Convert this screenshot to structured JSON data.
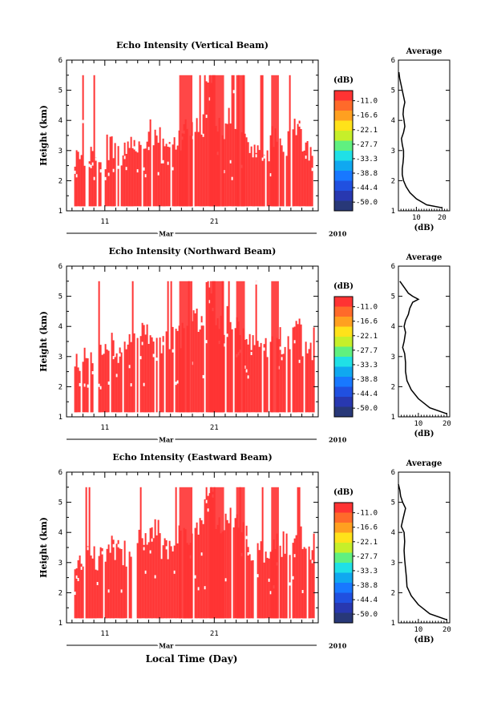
{
  "figure": {
    "xlabel": "Local Time (Day)",
    "month_label": "Mar",
    "year_label": "2010",
    "colorbar_unit": "(dB)",
    "colorbar_levels": [
      "-11.0",
      "-16.6",
      "-22.1",
      "-27.7",
      "-33.3",
      "-38.8",
      "-44.4",
      "-50.0"
    ],
    "colorbar_colors": [
      "#ff3333",
      "#ff6a2a",
      "#ffa020",
      "#ffe21a",
      "#c6ef2a",
      "#60f080",
      "#20e0e6",
      "#10a8f0",
      "#1878ff",
      "#2050e0",
      "#2838b0",
      "#283878"
    ],
    "fill_color": "#ff3333"
  },
  "chart_data": [
    {
      "type": "heatmap",
      "title": "Echo Intensity (Vertical Beam)",
      "ylabel": "Height (km)",
      "ylim": [
        1,
        6
      ],
      "yticks": [
        1,
        2,
        3,
        4,
        5,
        6
      ],
      "xlim": [
        7.5,
        30.5
      ],
      "xticks": [
        11,
        21
      ],
      "noise_seed": 11,
      "echo_top_km": [
        2.7,
        2.9,
        2.6,
        3.1,
        2.9,
        3.3,
        3.5,
        3.6,
        3.0,
        3.4,
        3.6,
        3.9,
        5.5,
        3.8,
        4.0,
        3.6,
        3.1,
        3.0,
        3.4,
        3.2,
        3.7,
        3.0,
        2.6,
        2.9
      ],
      "average": {
        "title": "Average",
        "xlabel": "(dB)",
        "xticks": [
          10,
          20
        ],
        "xlim": [
          3,
          23
        ],
        "ylim": [
          1,
          6
        ],
        "height_km": [
          1.1,
          1.2,
          1.4,
          1.6,
          1.8,
          2.0,
          2.2,
          2.4,
          2.6,
          2.8,
          3.0,
          3.2,
          3.4,
          3.6,
          3.8,
          4.0,
          4.2,
          4.4,
          4.6,
          4.8,
          5.0,
          5.2,
          5.4,
          5.6
        ],
        "db": [
          20,
          14,
          10,
          7.5,
          6.0,
          5.0,
          4.5,
          4.5,
          4.8,
          5.0,
          5.0,
          4.5,
          4.2,
          5.0,
          5.5,
          5.2,
          4.8,
          5.0,
          5.5,
          5.0,
          4.5,
          4.0,
          3.5,
          3.2
        ]
      }
    },
    {
      "type": "heatmap",
      "title": "Echo Intensity (Northward Beam)",
      "ylabel": "Height (km)",
      "ylim": [
        1,
        6
      ],
      "yticks": [
        1,
        2,
        3,
        4,
        5,
        6
      ],
      "xlim": [
        7.5,
        30.5
      ],
      "xticks": [
        11,
        21
      ],
      "noise_seed": 23,
      "echo_top_km": [
        2.9,
        3.1,
        3.0,
        3.4,
        3.2,
        3.5,
        3.8,
        3.9,
        3.4,
        3.7,
        3.9,
        4.2,
        5.5,
        4.1,
        4.3,
        3.9,
        3.4,
        3.3,
        3.7,
        3.5,
        4.0,
        3.3,
        3.8,
        3.9
      ],
      "average": {
        "title": "Average",
        "xlabel": "(dB)",
        "xticks": [
          10,
          20
        ],
        "xlim": [
          3,
          21
        ],
        "ylim": [
          1,
          6
        ],
        "height_km": [
          1.1,
          1.3,
          1.6,
          1.9,
          2.2,
          2.5,
          2.8,
          3.1,
          3.3,
          3.5,
          3.8,
          4.0,
          4.2,
          4.4,
          4.6,
          4.8,
          4.9,
          5.0,
          5.1,
          5.3,
          5.5
        ],
        "db": [
          20,
          14,
          10,
          7.5,
          6.0,
          5.5,
          5.5,
          5.2,
          4.5,
          5.0,
          5.5,
          5.0,
          5.5,
          6.5,
          7.0,
          8.0,
          10.0,
          8.0,
          6.5,
          5.0,
          3.5
        ]
      }
    },
    {
      "type": "heatmap",
      "title": "Echo Intensity (Eastward Beam)",
      "ylabel": "Height (km)",
      "ylim": [
        1,
        6
      ],
      "yticks": [
        1,
        2,
        3,
        4,
        5,
        6
      ],
      "xlim": [
        7.5,
        30.5
      ],
      "xticks": [
        11,
        21
      ],
      "noise_seed": 37,
      "echo_top_km": [
        3.0,
        3.3,
        3.1,
        3.5,
        3.3,
        3.6,
        3.9,
        4.0,
        3.5,
        3.8,
        4.0,
        4.3,
        5.5,
        4.2,
        4.4,
        4.0,
        3.5,
        3.4,
        3.8,
        3.6,
        4.1,
        3.4,
        3.7,
        3.8
      ],
      "average": {
        "title": "Average",
        "xlabel": "(dB)",
        "xticks": [
          10,
          20
        ],
        "xlim": [
          3,
          21
        ],
        "ylim": [
          1,
          6
        ],
        "height_km": [
          1.1,
          1.3,
          1.6,
          1.9,
          2.2,
          2.5,
          2.8,
          3.1,
          3.4,
          3.7,
          4.0,
          4.2,
          4.4,
          4.6,
          4.8,
          5.0,
          5.2,
          5.4,
          5.6
        ],
        "db": [
          20,
          14,
          10,
          7.5,
          6.0,
          5.8,
          5.5,
          5.2,
          5.0,
          5.2,
          5.0,
          4.0,
          4.5,
          5.0,
          5.5,
          4.5,
          3.8,
          3.5,
          3.0
        ]
      }
    }
  ]
}
